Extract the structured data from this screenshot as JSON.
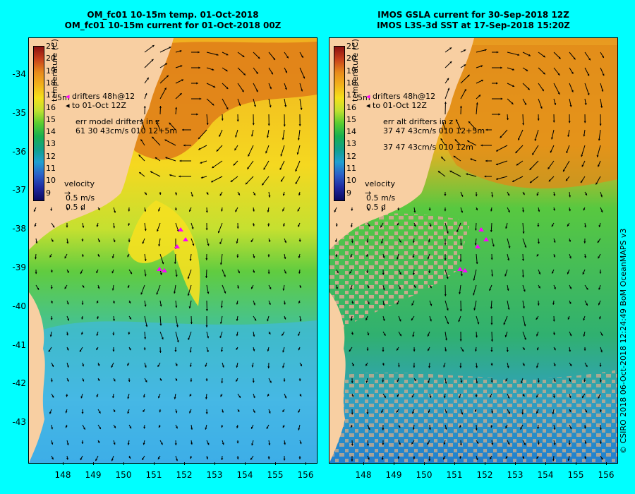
{
  "left_panel": {
    "title_line1": "OM_fc01 10-15m temp. 01-Oct-2018",
    "title_line2": "OM_fc01 10-15m current for 01-Oct-2018 00Z",
    "legend_drifters": "drifters 48h@12",
    "legend_drifters_sub": "to 01-Oct 12Z",
    "legend_err1": "err model drifters in z",
    "legend_err2": "61 30 43cm/s 010 12+5m",
    "velocity_label": "velocity",
    "velocity_scale1": "0.5 m/s",
    "velocity_scale2": "0.5 d"
  },
  "right_panel": {
    "title_line1": "IMOS GSLA current for 30-Sep-2018 12Z",
    "title_line2": "IMOS L3S-3d SST at 17-Sep-2018 15:20Z",
    "legend_drifters": "drifters 48h@12",
    "legend_drifters_sub": "to 01-Oct 12Z",
    "legend_err1": "err alt drifters in z",
    "legend_err2": "37 47 43cm/s 010 12+5m",
    "legend_err3": "37 47 43cm/s 010 12m",
    "velocity_label": "velocity",
    "velocity_scale1": "0.5 m/s",
    "velocity_scale2": "0.5 d"
  },
  "colorbar": {
    "title": "temperature (C)",
    "ticks": [
      "21",
      "20",
      "19",
      "18",
      "17",
      "16",
      "15",
      "14",
      "13",
      "12",
      "11",
      "10",
      "9"
    ],
    "colors": [
      "#8b1010",
      "#c8401a",
      "#e88a1a",
      "#f2b21a",
      "#f5e01a",
      "#bfe030",
      "#58cc30",
      "#18b050",
      "#10a08a",
      "#1fa0d0",
      "#2a60c8",
      "#1e28a0",
      "#0a0a60"
    ]
  },
  "left_small_label": "5m",
  "right_small_label": "5m",
  "y_labels": [
    "-34",
    "-35",
    "-36",
    "-37",
    "-38",
    "-39",
    "-40",
    "-41",
    "-42",
    "-43"
  ],
  "x_labels": [
    "148",
    "149",
    "150",
    "151",
    "152",
    "153",
    "154",
    "155",
    "156"
  ],
  "copyright": "© CSIRO 2018   06-Oct-2018 12:24:49 BoM OceanMAPS v3",
  "colors": {
    "background": "#00ffff",
    "land": "#f8cfa2",
    "missing": "#c8aa8c",
    "drifter": "#ff00ff"
  }
}
